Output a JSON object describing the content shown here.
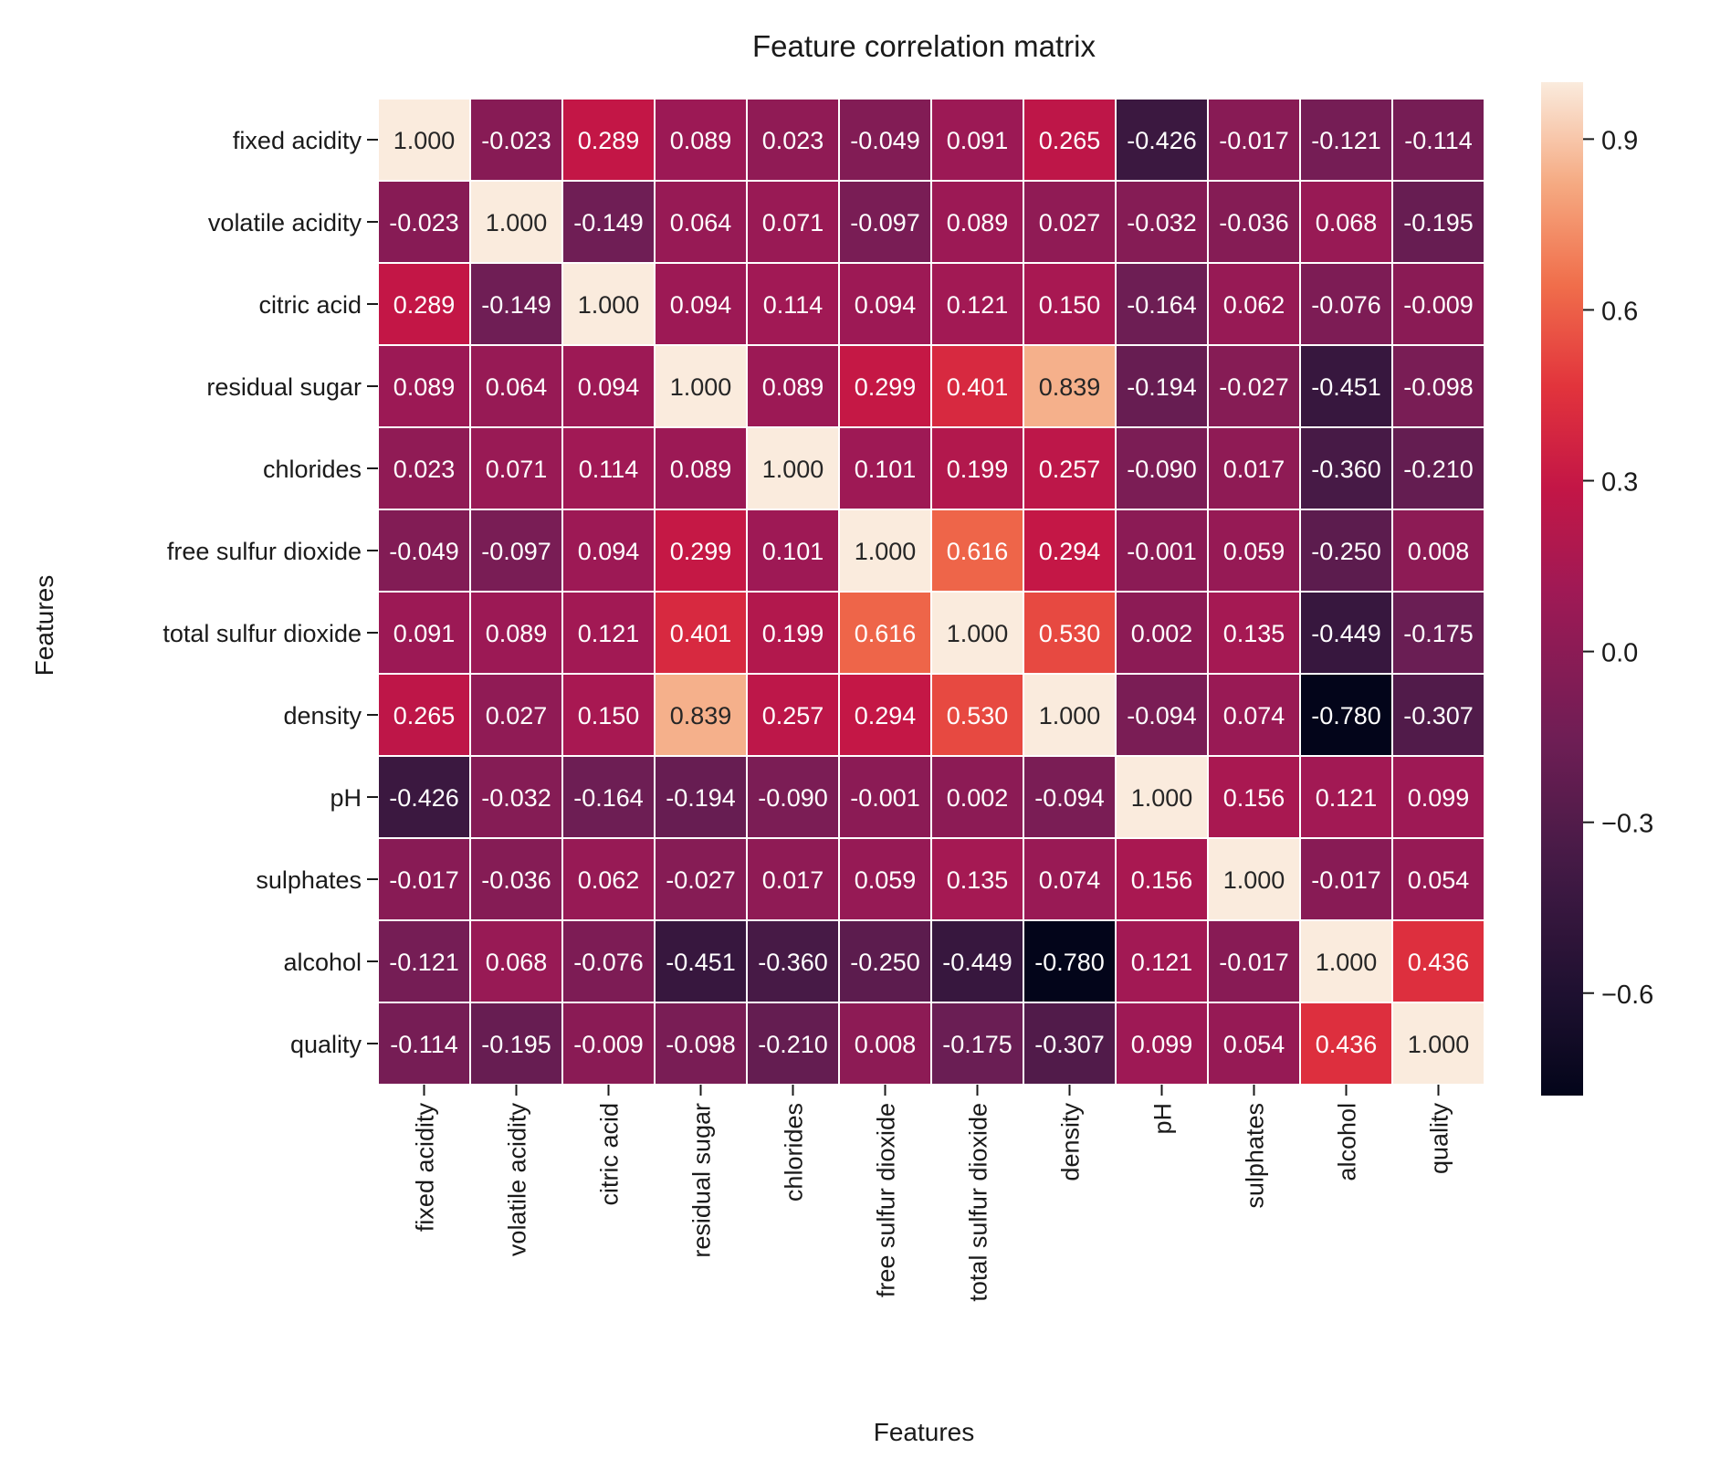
{
  "chart_data": {
    "type": "heatmap",
    "title": "Feature correlation matrix",
    "xlabel": "Features",
    "ylabel": "Features",
    "labels": [
      "fixed acidity",
      "volatile acidity",
      "citric acid",
      "residual sugar",
      "chlorides",
      "free sulfur dioxide",
      "total sulfur dioxide",
      "density",
      "pH",
      "sulphates",
      "alcohol",
      "quality"
    ],
    "matrix": [
      [
        1.0,
        -0.023,
        0.289,
        0.089,
        0.023,
        -0.049,
        0.091,
        0.265,
        -0.426,
        -0.017,
        -0.121,
        -0.114
      ],
      [
        -0.023,
        1.0,
        -0.149,
        0.064,
        0.071,
        -0.097,
        0.089,
        0.027,
        -0.032,
        -0.036,
        0.068,
        -0.195
      ],
      [
        0.289,
        -0.149,
        1.0,
        0.094,
        0.114,
        0.094,
        0.121,
        0.15,
        -0.164,
        0.062,
        -0.076,
        -0.009
      ],
      [
        0.089,
        0.064,
        0.094,
        1.0,
        0.089,
        0.299,
        0.401,
        0.839,
        -0.194,
        -0.027,
        -0.451,
        -0.098
      ],
      [
        0.023,
        0.071,
        0.114,
        0.089,
        1.0,
        0.101,
        0.199,
        0.257,
        -0.09,
        0.017,
        -0.36,
        -0.21
      ],
      [
        -0.049,
        -0.097,
        0.094,
        0.299,
        0.101,
        1.0,
        0.616,
        0.294,
        -0.001,
        0.059,
        -0.25,
        0.008
      ],
      [
        0.091,
        0.089,
        0.121,
        0.401,
        0.199,
        0.616,
        1.0,
        0.53,
        0.002,
        0.135,
        -0.449,
        -0.175
      ],
      [
        0.265,
        0.027,
        0.15,
        0.839,
        0.257,
        0.294,
        0.53,
        1.0,
        -0.094,
        0.074,
        -0.78,
        -0.307
      ],
      [
        -0.426,
        -0.032,
        -0.164,
        -0.194,
        -0.09,
        -0.001,
        0.002,
        -0.094,
        1.0,
        0.156,
        0.121,
        0.099
      ],
      [
        -0.017,
        -0.036,
        0.062,
        -0.027,
        0.017,
        0.059,
        0.135,
        0.074,
        0.156,
        1.0,
        -0.017,
        0.054
      ],
      [
        -0.121,
        0.068,
        -0.076,
        -0.451,
        -0.36,
        -0.25,
        -0.449,
        -0.78,
        0.121,
        -0.017,
        1.0,
        0.436
      ],
      [
        -0.114,
        -0.195,
        -0.009,
        -0.098,
        -0.21,
        0.008,
        -0.175,
        -0.307,
        0.099,
        0.054,
        0.436,
        1.0
      ]
    ],
    "value_format": "3 decimals",
    "colormap": "rocket",
    "vmin": -0.78,
    "vmax": 1.0,
    "colorbar_ticks": [
      0.9,
      0.6,
      0.3,
      0.0,
      -0.3,
      -0.6
    ],
    "colorbar_tick_labels": [
      "0.9",
      "0.6",
      "0.3",
      "0.0",
      "−0.3",
      "−0.6"
    ],
    "cell_border_color": "#ffffff",
    "annotation_color_dark_bg": "#ffffff",
    "annotation_color_light_bg": "#262626"
  }
}
